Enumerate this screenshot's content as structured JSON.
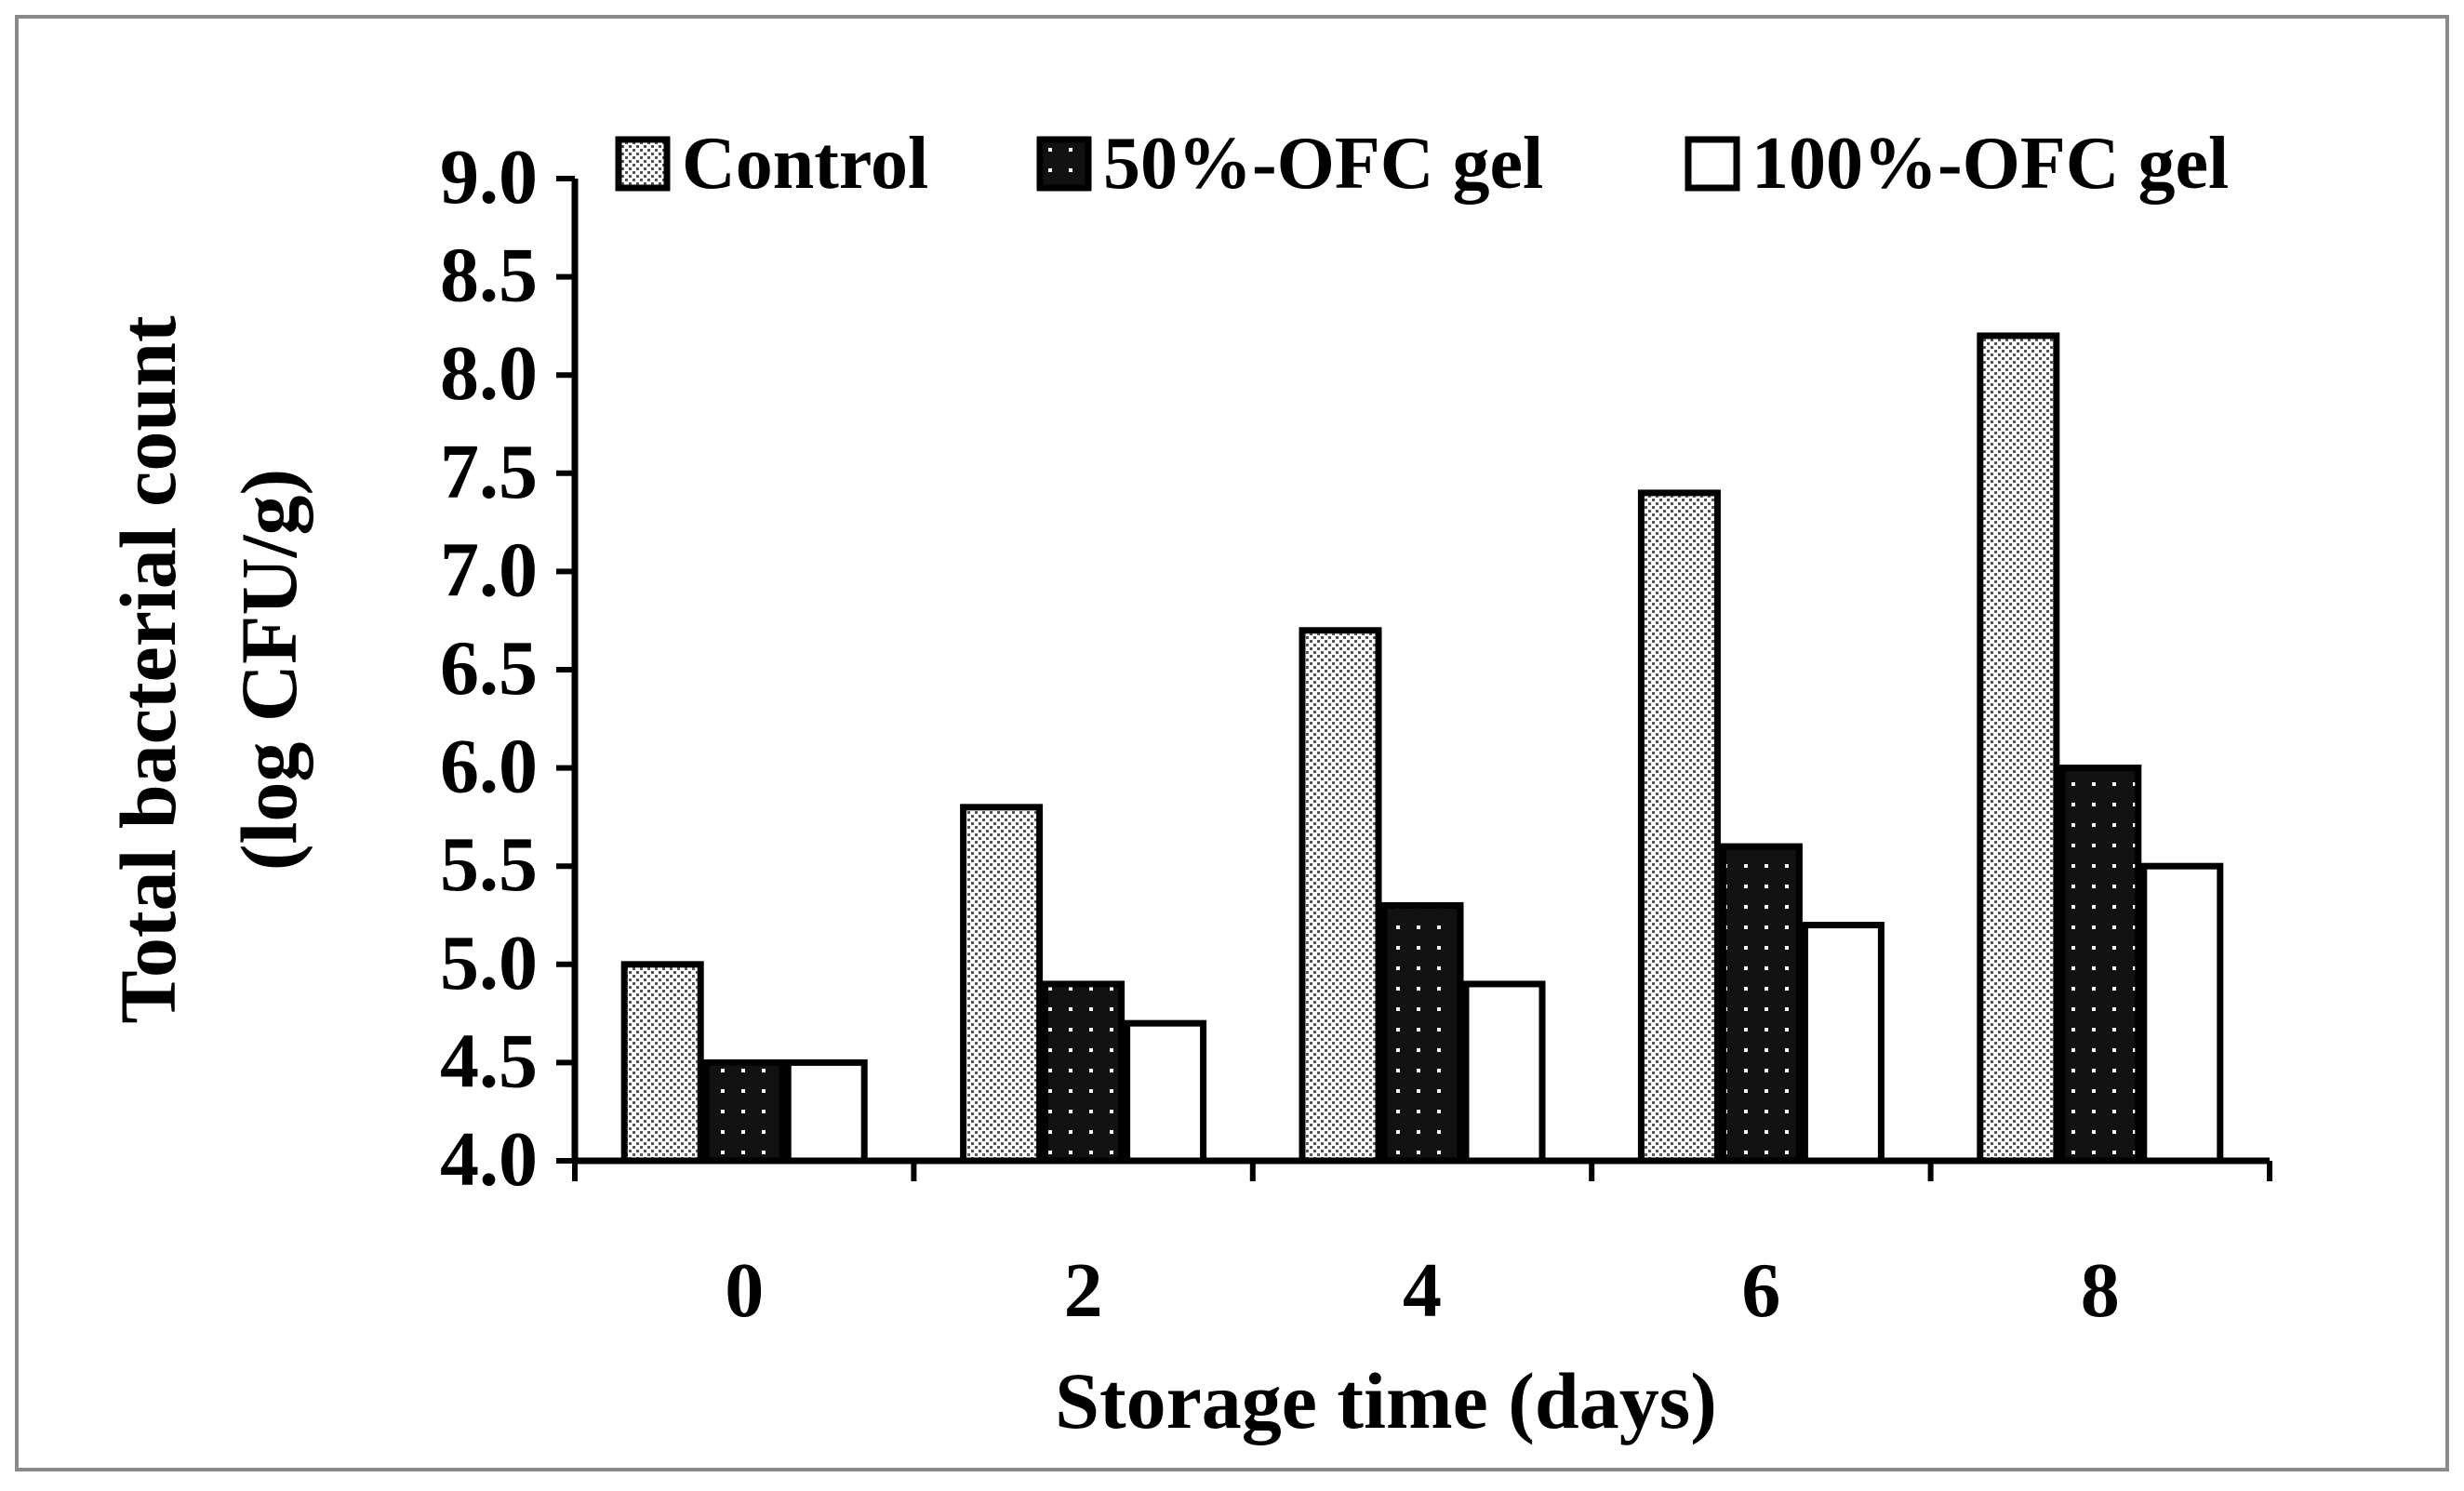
{
  "chart_data": {
    "type": "bar",
    "title": "",
    "xlabel": "Storage time (days)",
    "ylabel_line1": "Total bacterial count",
    "ylabel_line2": "(log CFU/g)",
    "categories": [
      "0",
      "2",
      "4",
      "6",
      "8"
    ],
    "ylim": [
      4.0,
      9.0
    ],
    "yticks": [
      "4.0",
      "4.5",
      "5.0",
      "5.5",
      "6.0",
      "6.5",
      "7.0",
      "7.5",
      "8.0",
      "8.5",
      "9.0"
    ],
    "legend_position": "top",
    "series": [
      {
        "name": "Control",
        "pattern": "fine-dots",
        "values": [
          5.0,
          5.8,
          6.7,
          7.4,
          8.2
        ]
      },
      {
        "name": "50%-OFC gel",
        "pattern": "black-dots",
        "values": [
          4.5,
          4.9,
          5.3,
          5.6,
          6.0
        ]
      },
      {
        "name": "100%-OFC gel",
        "pattern": "white",
        "values": [
          4.5,
          4.7,
          4.9,
          5.2,
          5.5
        ]
      }
    ]
  }
}
